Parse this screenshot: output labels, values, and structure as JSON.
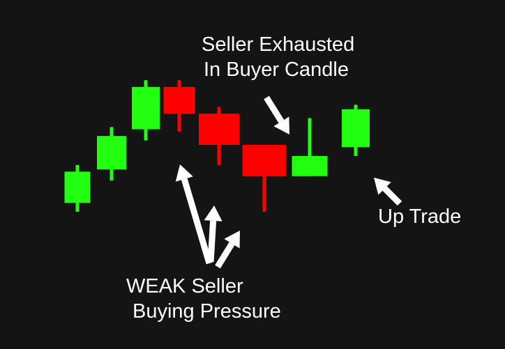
{
  "colors": {
    "background": "#141414",
    "bullish": "#22ff10",
    "bearish": "#ff0000",
    "annotation": "#ffffff"
  },
  "chart_data": {
    "type": "candlestick",
    "title": "",
    "xlabel": "",
    "ylabel": "",
    "grid": false,
    "ylim": [
      0,
      100
    ],
    "candles": [
      {
        "index": 1,
        "direction": "up",
        "open": 34,
        "high": 51,
        "low": 30,
        "close": 48
      },
      {
        "index": 2,
        "direction": "up",
        "open": 49,
        "high": 68,
        "low": 44,
        "close": 64
      },
      {
        "index": 3,
        "direction": "up",
        "open": 67,
        "high": 89,
        "low": 62,
        "close": 86
      },
      {
        "index": 4,
        "direction": "down",
        "open": 86,
        "high": 89,
        "low": 66,
        "close": 74
      },
      {
        "index": 5,
        "direction": "down",
        "open": 74,
        "high": 77,
        "low": 51,
        "close": 60
      },
      {
        "index": 6,
        "direction": "down",
        "open": 60,
        "high": 60,
        "low": 30,
        "close": 46
      },
      {
        "index": 7,
        "direction": "up",
        "open": 46,
        "high": 72,
        "low": 46,
        "close": 55
      },
      {
        "index": 8,
        "direction": "up",
        "open": 59,
        "high": 78,
        "low": 55,
        "close": 76
      }
    ],
    "annotations": {
      "seller_exhausted": [
        "Seller Exhausted",
        "In Buyer Candle"
      ],
      "weak_seller": [
        "WEAK Seller",
        "Buying Pressure"
      ],
      "up_trade": "Up Trade"
    }
  }
}
